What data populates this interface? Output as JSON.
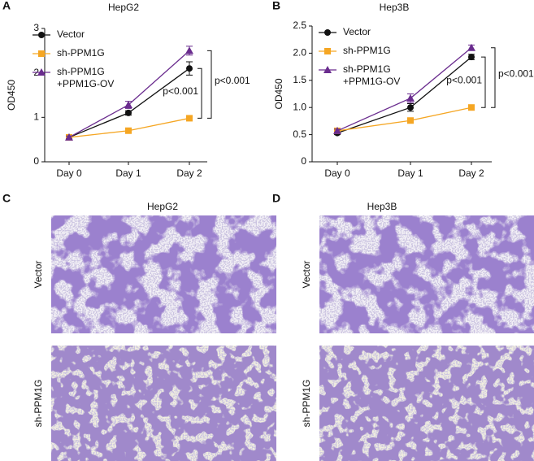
{
  "chart_data": [
    {
      "type": "line",
      "panel_label": "A",
      "title": "HepG2",
      "y_label": "OD450",
      "categories": [
        "Day 0",
        "Day 1",
        "Day 2"
      ],
      "ylim": [
        0,
        3
      ],
      "yticks": [
        0,
        1,
        2,
        3
      ],
      "series": [
        {
          "name": "Vector",
          "color": "#111111",
          "marker": "circle",
          "values": [
            0.55,
            1.1,
            2.1
          ],
          "errors": [
            0.03,
            0.05,
            0.15
          ]
        },
        {
          "name": "sh-PPM1G",
          "color": "#f5a623",
          "marker": "square",
          "values": [
            0.55,
            0.7,
            0.98
          ],
          "errors": [
            0.02,
            0.03,
            0.05
          ]
        },
        {
          "name": "sh-PPM1G +PPM1G-OV",
          "color": "#6a2c8e",
          "marker": "triangle",
          "values": [
            0.55,
            1.28,
            2.5
          ],
          "errors": [
            0.03,
            0.08,
            0.1
          ]
        }
      ],
      "annotations": [
        "p<0.001",
        "p<0.001"
      ]
    },
    {
      "type": "line",
      "panel_label": "B",
      "title": "Hep3B",
      "y_label": "OD450",
      "categories": [
        "Day 0",
        "Day 1",
        "Day 2"
      ],
      "ylim": [
        0,
        2.5
      ],
      "yticks": [
        0,
        0.5,
        {
          "value": 1,
          "label": "1.0"
        },
        1.5,
        {
          "value": 2,
          "label": "2.0"
        },
        2.5
      ],
      "series": [
        {
          "name": "Vector",
          "color": "#111111",
          "marker": "circle",
          "values": [
            0.53,
            1.0,
            1.93
          ],
          "errors": [
            0.03,
            0.07,
            0.05
          ]
        },
        {
          "name": "sh-PPM1G",
          "color": "#f5a623",
          "marker": "square",
          "values": [
            0.57,
            0.76,
            1.0
          ],
          "errors": [
            0.02,
            0.02,
            0.02
          ]
        },
        {
          "name": "sh-PPM1G +PPM1G-OV",
          "color": "#6a2c8e",
          "marker": "triangle",
          "values": [
            0.57,
            1.17,
            2.1
          ],
          "errors": [
            0.03,
            0.08,
            0.05
          ]
        }
      ],
      "annotations": [
        "p<0.001",
        "p<0.001"
      ]
    }
  ],
  "image_panels": [
    {
      "panel_label": "C",
      "title": "HepG2",
      "rows": [
        "Vector",
        "sh-PPM1G"
      ]
    },
    {
      "panel_label": "D",
      "title": "Hep3B",
      "rows": [
        "Vector",
        "sh-PPM1G"
      ]
    }
  ]
}
